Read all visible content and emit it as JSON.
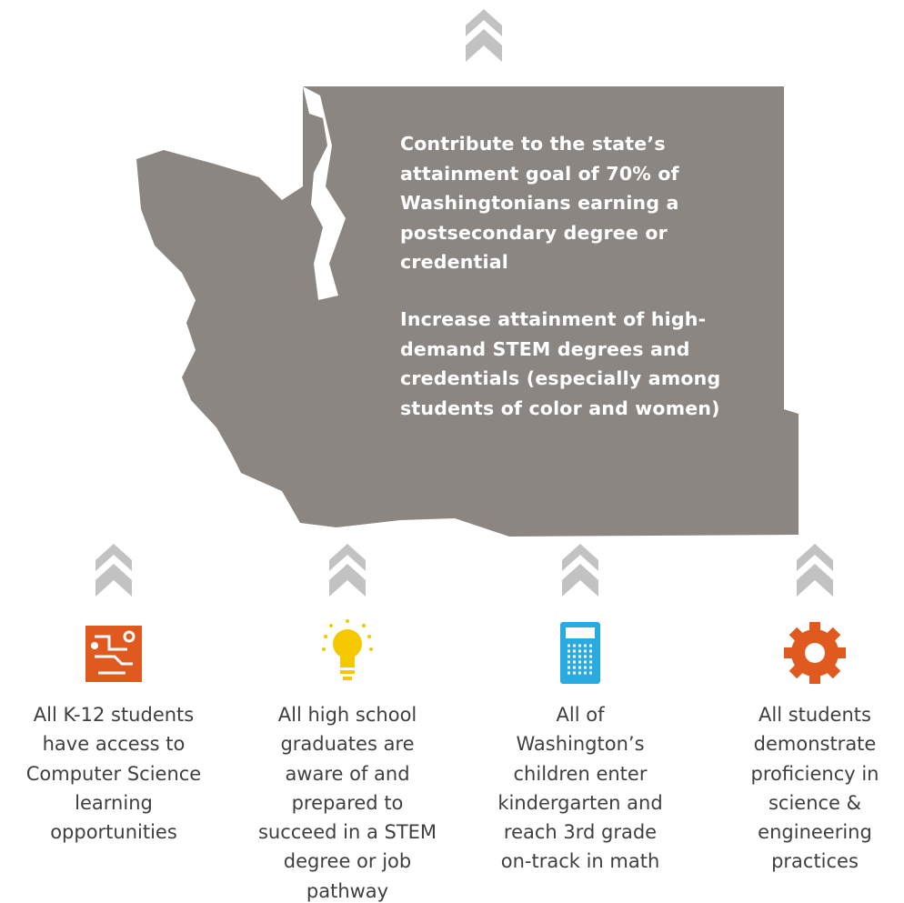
{
  "goals": [
    {
      "lines": [
        "Contribute to the state’s",
        "attainment goal of 70% of",
        "Washingtonians earning a",
        "postsecondary degree or",
        "credential"
      ]
    },
    {
      "lines": [
        "Increase attainment of high-",
        "demand STEM degrees and",
        "credentials (especially among",
        "students of color and women)"
      ]
    }
  ],
  "items": [
    {
      "lines": [
        "All K-12 students",
        "have access to",
        "Computer Science",
        "learning",
        "opportunities"
      ]
    },
    {
      "lines": [
        "All high school",
        "graduates are",
        "aware of and",
        "prepared to",
        "succeed in a STEM",
        "degree or job",
        "pathway"
      ]
    },
    {
      "lines": [
        "All of",
        "Washington’s",
        "children enter",
        "kindergarten and",
        "reach 3rd grade",
        "on-track in math"
      ]
    },
    {
      "lines": [
        "All students",
        "demonstrate",
        "proficiency in",
        "science &",
        "engineering",
        "practices"
      ]
    }
  ]
}
